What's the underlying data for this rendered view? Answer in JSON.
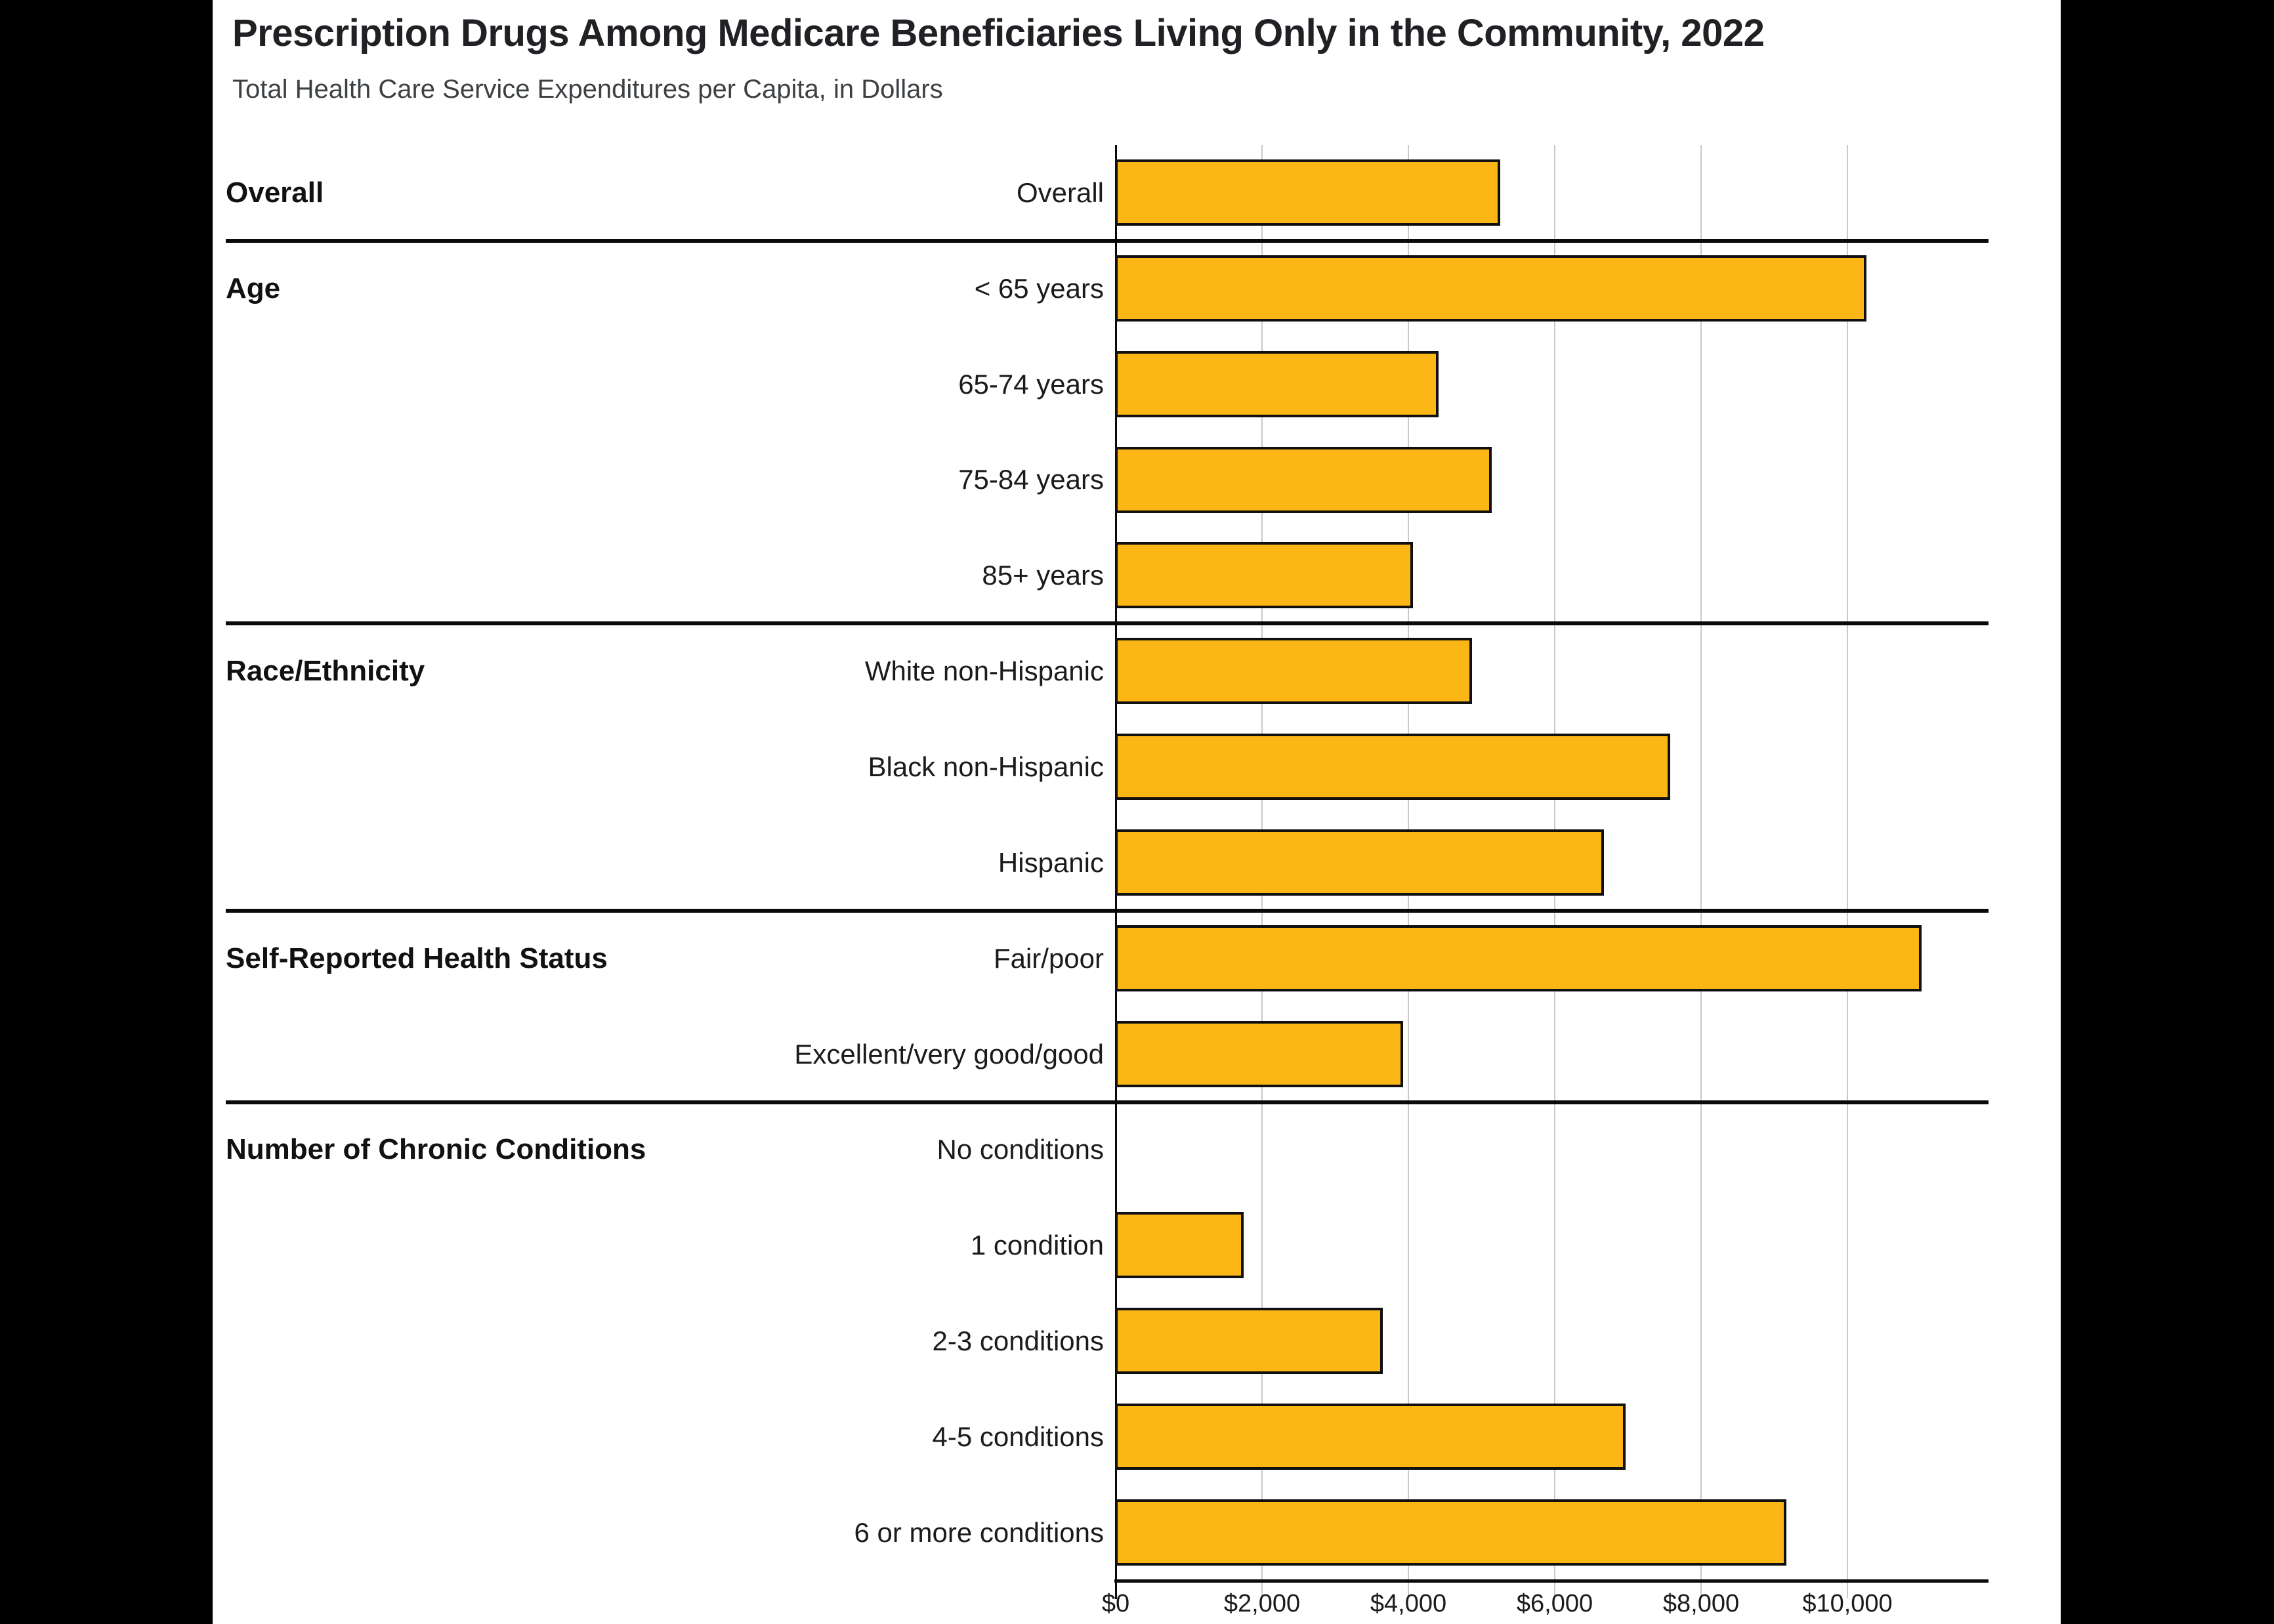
{
  "header": {
    "title": "Prescription Drugs Among Medicare Beneficiaries Living Only in the Community, 2022",
    "subtitle": "Total Health Care Service Expenditures per Capita, in Dollars"
  },
  "chart_data": {
    "type": "bar",
    "orientation": "horizontal",
    "title": "Prescription Drugs Among Medicare Beneficiaries Living Only in the Community, 2022",
    "subtitle": "Total Health Care Service Expenditures per Capita, in Dollars",
    "unit": "dollars per capita",
    "xlim": [
      0,
      12000
    ],
    "grid": true,
    "bar_color": "#FCB615",
    "bar_border_color": "#101010",
    "gridline_color": "#c9c9c9",
    "tick_labels": [
      "$0",
      "$2,000",
      "$4,000",
      "$6,000",
      "$8,000",
      "$10,000"
    ],
    "tick_values": [
      0,
      2000,
      4000,
      6000,
      8000,
      10000
    ],
    "groups": [
      {
        "label": "Overall",
        "rows": [
          {
            "label": "Overall",
            "value": 5250
          }
        ]
      },
      {
        "label": "Age",
        "rows": [
          {
            "label": "< 65 years",
            "value": 10250
          },
          {
            "label": "65-74 years",
            "value": 4400
          },
          {
            "label": "75-84 years",
            "value": 5130
          },
          {
            "label": "85+ years",
            "value": 4050
          }
        ]
      },
      {
        "label": "Race/Ethnicity",
        "rows": [
          {
            "label": "White non-Hispanic",
            "value": 4860
          },
          {
            "label": "Black non-Hispanic",
            "value": 7570
          },
          {
            "label": "Hispanic",
            "value": 6660
          }
        ]
      },
      {
        "label": "Self-Reported Health Status",
        "rows": [
          {
            "label": "Fair/poor",
            "value": 11000
          },
          {
            "label": "Excellent/very good/good",
            "value": 3920
          }
        ]
      },
      {
        "label": "Number of Chronic Conditions",
        "rows": [
          {
            "label": "No conditions",
            "value": 0
          },
          {
            "label": "1 condition",
            "value": 1740
          },
          {
            "label": "2-3 conditions",
            "value": 3640
          },
          {
            "label": "4-5 conditions",
            "value": 6960
          },
          {
            "label": "6 or more conditions",
            "value": 9160
          }
        ]
      }
    ]
  }
}
